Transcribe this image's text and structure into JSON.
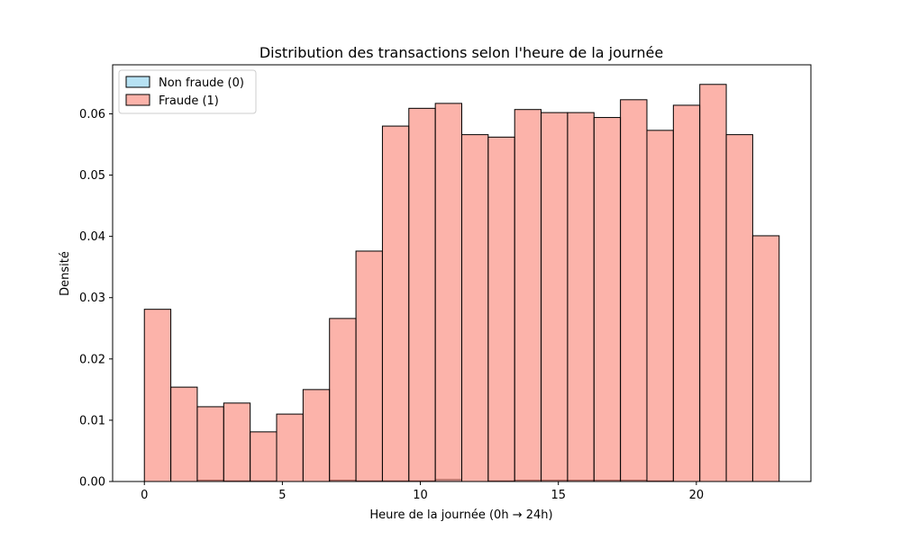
{
  "chart_data": {
    "type": "bar",
    "title": "Distribution des transactions selon l'heure de la journée",
    "xlabel": "Heure de la journée (0h → 24h)",
    "ylabel": "Densité",
    "xlim": [
      -1.15,
      24.15
    ],
    "ylim": [
      0,
      0.068
    ],
    "xticks": [
      0,
      5,
      10,
      15,
      20
    ],
    "yticks": [
      0.0,
      0.01,
      0.02,
      0.03,
      0.04,
      0.05,
      0.06
    ],
    "ytick_labels": [
      "0.00",
      "0.01",
      "0.02",
      "0.03",
      "0.04",
      "0.05",
      "0.06"
    ],
    "grid": false,
    "legend_position": "upper-left",
    "bin_edges": [
      0,
      0.9583,
      1.9167,
      2.875,
      3.8333,
      4.7917,
      5.75,
      6.7083,
      7.6667,
      8.625,
      9.5833,
      10.5417,
      11.5,
      12.4583,
      13.4167,
      14.375,
      15.3333,
      16.2917,
      17.25,
      18.2083,
      19.1667,
      20.125,
      21.0833,
      22.0417,
      23.0
    ],
    "series": [
      {
        "name": "Non fraude (0)",
        "color": "#87ceeb",
        "values": [
          0.0,
          0.0,
          0.0002,
          0.0001,
          0.0001,
          0.0,
          0.0,
          0.0002,
          0.0001,
          0.0001,
          0.0001,
          0.0003,
          0.0,
          0.0001,
          0.0002,
          0.0002,
          0.0002,
          0.0002,
          0.0002,
          0.0001,
          0.0,
          0.0,
          0.0,
          0.0
        ]
      },
      {
        "name": "Fraude (1)",
        "color": "#fa8072",
        "values": [
          0.0281,
          0.0154,
          0.0122,
          0.0128,
          0.0081,
          0.011,
          0.015,
          0.0266,
          0.0376,
          0.058,
          0.0609,
          0.0617,
          0.0566,
          0.0562,
          0.0607,
          0.0602,
          0.0602,
          0.0594,
          0.0623,
          0.0573,
          0.0614,
          0.0648,
          0.0566,
          0.0401
        ]
      }
    ]
  }
}
